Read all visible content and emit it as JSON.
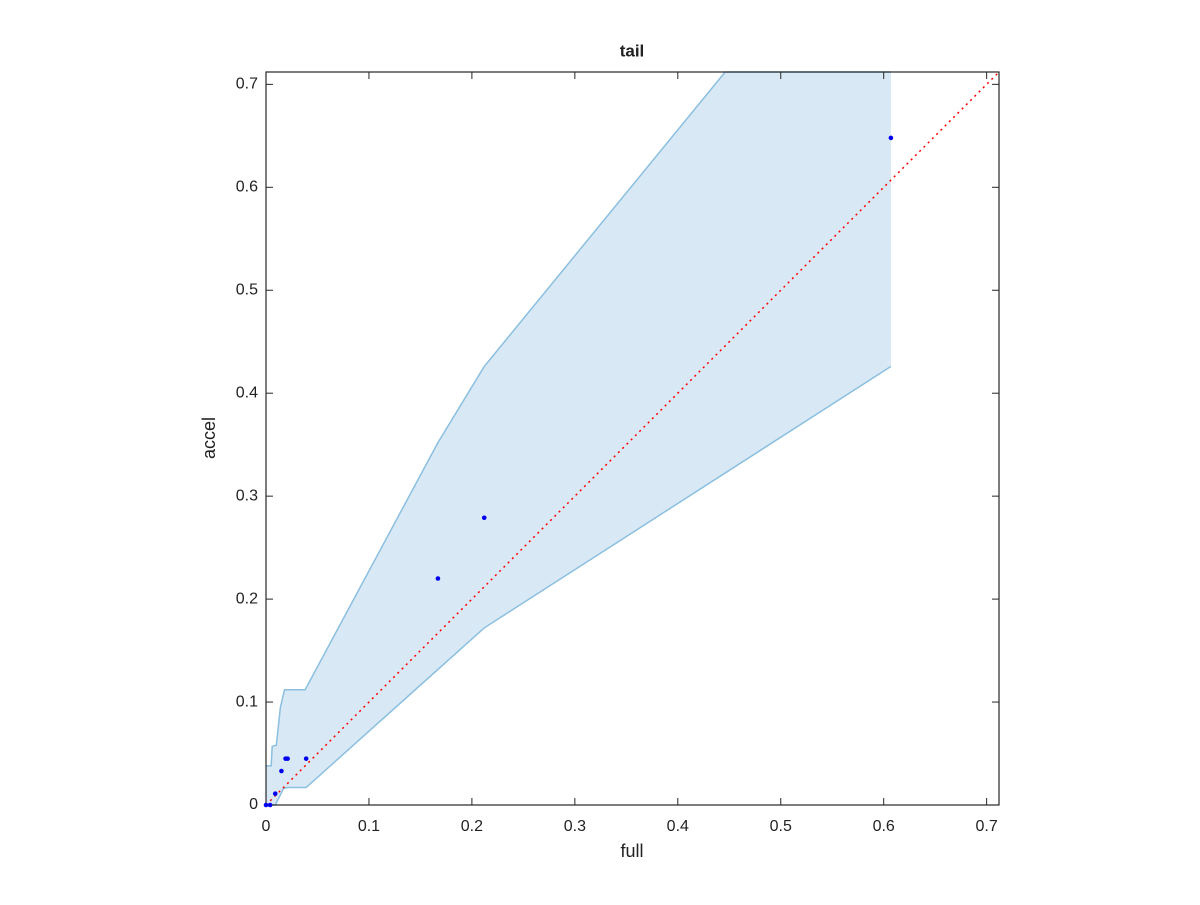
{
  "chart_data": {
    "type": "scatter",
    "title": "tail",
    "x_label": "full",
    "y_label": "accel",
    "xlim": [
      0,
      0.712
    ],
    "ylim": [
      0,
      0.712
    ],
    "xticks": [
      0,
      0.1,
      0.2,
      0.3,
      0.4,
      0.5,
      0.6,
      0.7
    ],
    "yticks": [
      0,
      0.1,
      0.2,
      0.3,
      0.4,
      0.5,
      0.6,
      0.7
    ],
    "band": {
      "color": "#d9e8f5",
      "edge_color": "#8bbfe0",
      "upper": {
        "x": [
          0,
          0.005,
          0.006,
          0.01,
          0.014,
          0.018,
          0.038,
          0.167,
          0.212,
          0.446,
          0.607
        ],
        "values": [
          0.038,
          0.038,
          0.057,
          0.058,
          0.095,
          0.112,
          0.112,
          0.352,
          0.426,
          0.712,
          0.712
        ]
      },
      "lower": {
        "x": [
          0,
          0.009,
          0.017,
          0.021,
          0.039,
          0.212,
          0.607
        ],
        "values": [
          0,
          0,
          0.016,
          0.017,
          0.017,
          0.172,
          0.426
        ]
      }
    },
    "reference_line": {
      "color": "#ff0000",
      "x": [
        0,
        0.712
      ],
      "values": [
        0,
        0.712
      ]
    },
    "series": [
      {
        "color": "#0000ee",
        "x": [
          0,
          0.004,
          0.009,
          0.015,
          0.019,
          0.021,
          0.039,
          0.167,
          0.212,
          0.607
        ],
        "values": [
          0,
          0,
          0.011,
          0.033,
          0.045,
          0.045,
          0.045,
          0.22,
          0.279,
          0.648
        ]
      }
    ]
  }
}
